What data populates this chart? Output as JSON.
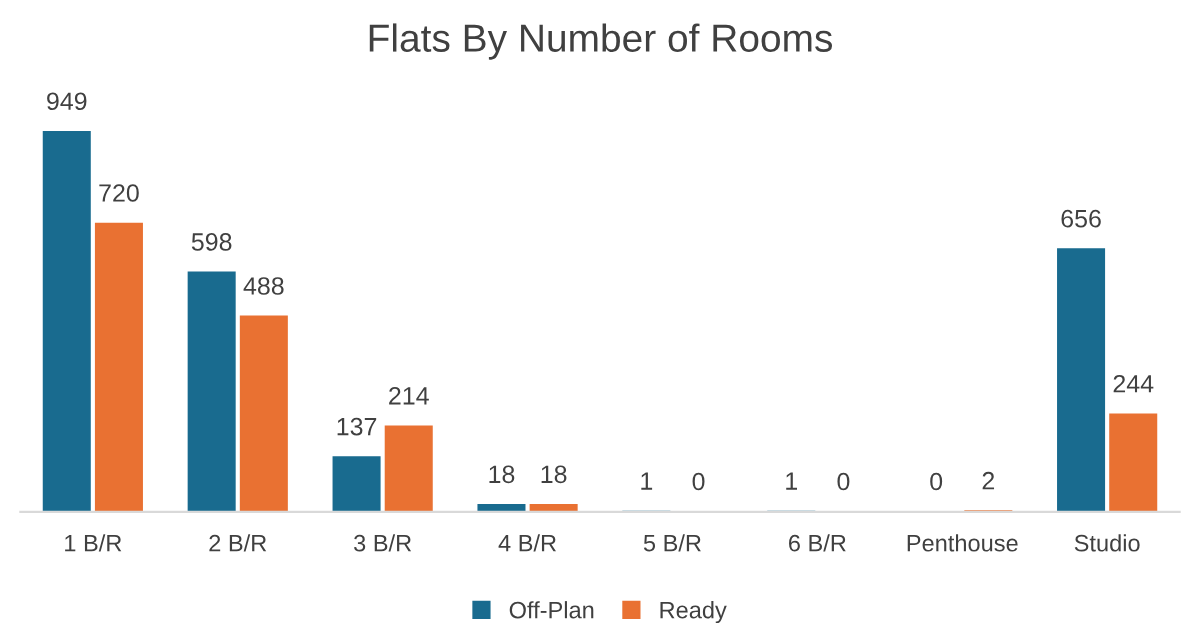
{
  "chart_data": {
    "type": "bar",
    "title": "Flats By Number of Rooms",
    "categories": [
      "1 B/R",
      "2 B/R",
      "3 B/R",
      "4 B/R",
      "5 B/R",
      "6 B/R",
      "Penthouse",
      "Studio"
    ],
    "series": [
      {
        "name": "Off-Plan",
        "color": "#196b8f",
        "values": [
          949,
          598,
          137,
          18,
          1,
          1,
          0,
          656
        ]
      },
      {
        "name": "Ready",
        "color": "#e97132",
        "values": [
          720,
          488,
          214,
          18,
          0,
          0,
          2,
          244
        ]
      }
    ],
    "data_labels": true,
    "legend": "bottom",
    "grid": false
  }
}
